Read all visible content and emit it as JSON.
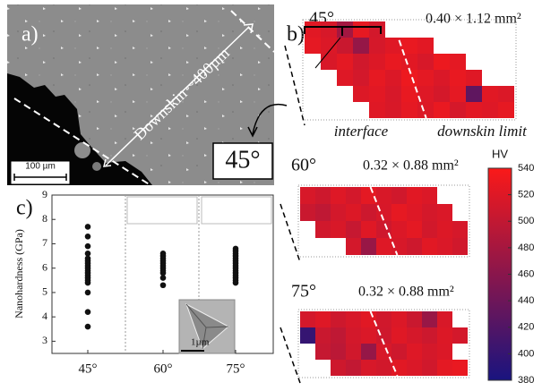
{
  "panel_a": {
    "label": "a)",
    "annotation": "Downskin ~400µm",
    "scale_bar": "100 µm",
    "angle": "45°"
  },
  "chart_data": [
    {
      "type": "scatter",
      "panel_label": "c)",
      "y_label": "Nanohardness (GPa)",
      "inset_scale": "1µm",
      "categories": [
        "45°",
        "60°",
        "75°"
      ],
      "color": "#111111",
      "series": [
        {
          "values": [
            7.7,
            7.3,
            6.9,
            6.6,
            6.4,
            6.3,
            6.2,
            6.1,
            6.0,
            5.9,
            5.8,
            5.7,
            5.6,
            5.5,
            5.4,
            5.0,
            4.2,
            3.6
          ]
        },
        {
          "values": [
            6.6,
            6.5,
            6.4,
            6.3,
            6.2,
            6.1,
            6.0,
            5.9,
            5.8,
            5.6,
            5.3
          ]
        },
        {
          "values": [
            6.8,
            6.7,
            6.6,
            6.5,
            6.4,
            6.3,
            6.2,
            6.1,
            6.0,
            5.9,
            5.8,
            5.7,
            5.6,
            5.5,
            5.4
          ]
        }
      ],
      "ylim": [
        2.5,
        9
      ],
      "yticks": [
        3,
        4,
        5,
        6,
        7,
        8,
        9
      ]
    },
    {
      "type": "heatmap",
      "panel_label": "b)",
      "title": "45°",
      "subtitle": "0.40 × 1.12 mm²",
      "annotations": [
        "interface",
        "downskin limit"
      ],
      "values": [
        [
          522,
          515,
          478,
          526,
          512,
          null,
          null,
          null,
          null,
          null,
          null,
          null,
          null
        ],
        [
          525,
          518,
          505,
          468,
          514,
          521,
          528,
          523,
          null,
          null,
          null,
          null,
          null
        ],
        [
          null,
          516,
          524,
          510,
          519,
          527,
          522,
          515,
          530,
          524,
          null,
          null,
          null
        ],
        [
          null,
          null,
          520,
          512,
          526,
          518,
          531,
          524,
          517,
          528,
          521,
          null,
          null
        ],
        [
          null,
          null,
          null,
          519,
          523,
          515,
          527,
          520,
          513,
          525,
          430,
          522,
          518
        ],
        [
          null,
          null,
          null,
          null,
          521,
          516,
          525,
          519,
          528,
          514,
          523,
          520,
          526
        ]
      ]
    },
    {
      "type": "heatmap",
      "title": "60°",
      "subtitle": "0.32 × 0.88 mm²",
      "values": [
        [
          515,
          508,
          520,
          512,
          524,
          516,
          510,
          522,
          518,
          null,
          null
        ],
        [
          505,
          498,
          512,
          519,
          507,
          515,
          526,
          520,
          513,
          517,
          null
        ],
        [
          null,
          510,
          516,
          503,
          521,
          509,
          518,
          524,
          511,
          519,
          514
        ],
        [
          null,
          null,
          null,
          512,
          470,
          520,
          515,
          508,
          522,
          517,
          510
        ]
      ]
    },
    {
      "type": "heatmap",
      "title": "75°",
      "subtitle": "0.32 × 0.88 mm²",
      "values": [
        [
          512,
          520,
          508,
          515,
          522,
          510,
          518,
          505,
          470,
          516,
          null
        ],
        [
          400,
          505,
          498,
          512,
          517,
          509,
          521,
          514,
          507,
          519,
          512
        ],
        [
          null,
          502,
          495,
          510,
          468,
          515,
          508,
          520,
          513,
          518,
          null
        ],
        [
          null,
          null,
          508,
          500,
          515,
          511,
          522,
          517,
          510,
          524,
          528
        ]
      ]
    },
    {
      "type": "colorbar",
      "label": "HV",
      "lim": [
        380,
        540
      ],
      "ticks": [
        380,
        400,
        420,
        440,
        460,
        480,
        500,
        520,
        540
      ],
      "colors": [
        "#19147f",
        "#fa1919"
      ]
    }
  ]
}
